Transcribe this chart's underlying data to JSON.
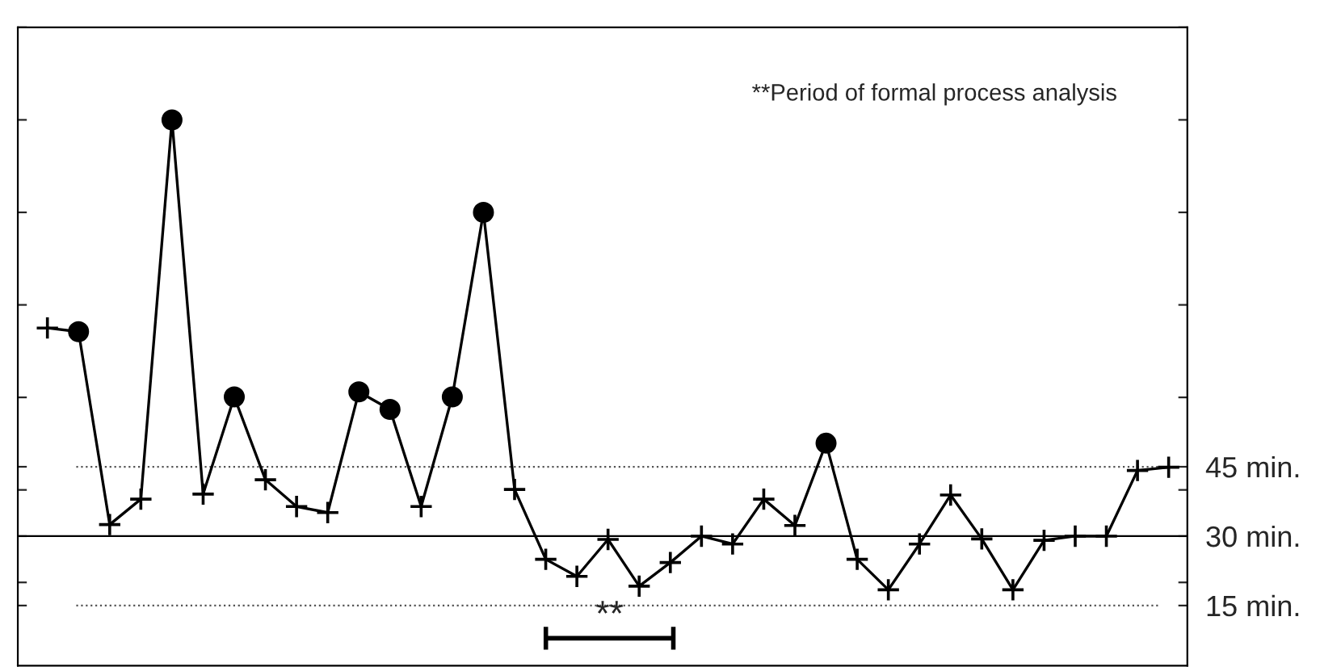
{
  "chart_data": {
    "type": "line",
    "categories": [
      null,
      null,
      null,
      null,
      null,
      null,
      null,
      null,
      null,
      null,
      null,
      null,
      null,
      null,
      null,
      null,
      null,
      null,
      null,
      null,
      null,
      null,
      null,
      null,
      null,
      null,
      null,
      null,
      null,
      null,
      null,
      null,
      null,
      null,
      null,
      null,
      null
    ],
    "series": [
      {
        "color": "#000000",
        "marker": "none",
        "line_style": "solid",
        "values": [
          75,
          74.2,
          32.5,
          38,
          120,
          39.1,
          60.1,
          42.2,
          36.4,
          35.1,
          61.2,
          57.4,
          36.4,
          60.1,
          100,
          40.1,
          25,
          21.3,
          29.3,
          19.2,
          24.3,
          30,
          28.3,
          38,
          32.3,
          50.1,
          25,
          18.4,
          28.3,
          38.9,
          29.4,
          18.4,
          29.1,
          30,
          30,
          44.2,
          44.9
        ]
      },
      {
        "type": "scatter",
        "color": "#000000",
        "marker": "cross",
        "values": [
          75,
          null,
          32.5,
          38,
          null,
          39.1,
          null,
          42.2,
          36.4,
          35.1,
          null,
          null,
          36.4,
          null,
          null,
          40.1,
          25,
          21.3,
          29.3,
          19.2,
          24.3,
          30,
          28.3,
          38,
          32.3,
          null,
          25,
          18.4,
          28.3,
          38.9,
          29.4,
          18.4,
          29.1,
          30,
          30,
          44.2,
          44.9
        ]
      },
      {
        "type": "scatter",
        "color": "#000000",
        "marker": "circle",
        "values": [
          null,
          74.2,
          null,
          null,
          120,
          null,
          60.1,
          null,
          null,
          null,
          61.2,
          57.4,
          null,
          60.1,
          100,
          null,
          null,
          null,
          null,
          null,
          null,
          null,
          null,
          null,
          null,
          50.1,
          null,
          null,
          null,
          null,
          null,
          null,
          null,
          null,
          null,
          null,
          null
        ]
      }
    ],
    "ylim": [
      2,
      140
    ],
    "yticks": [
      {
        "value": 15,
        "label": "15 min."
      },
      {
        "value": 30,
        "label": "30 min."
      },
      {
        "value": 45,
        "label": "45 min."
      },
      {
        "value": 20,
        "label": null
      },
      {
        "value": 40,
        "label": null
      },
      {
        "value": 60,
        "label": null
      },
      {
        "value": 80,
        "label": null
      },
      {
        "value": 100,
        "label": null
      },
      {
        "value": 120,
        "label": null
      },
      {
        "value": 140,
        "label": null
      }
    ],
    "grid": false,
    "legend": false,
    "ref_lines": [
      {
        "axis": "y",
        "value": 45,
        "line_style": "dotted",
        "color": "#555555"
      },
      {
        "axis": "y",
        "value": 30,
        "line_style": "solid",
        "color": "#000000"
      },
      {
        "axis": "y",
        "value": 15,
        "line_style": "dotted",
        "color": "#555555"
      }
    ],
    "annotations": [
      "**Period of formal process analysis",
      "**"
    ]
  }
}
